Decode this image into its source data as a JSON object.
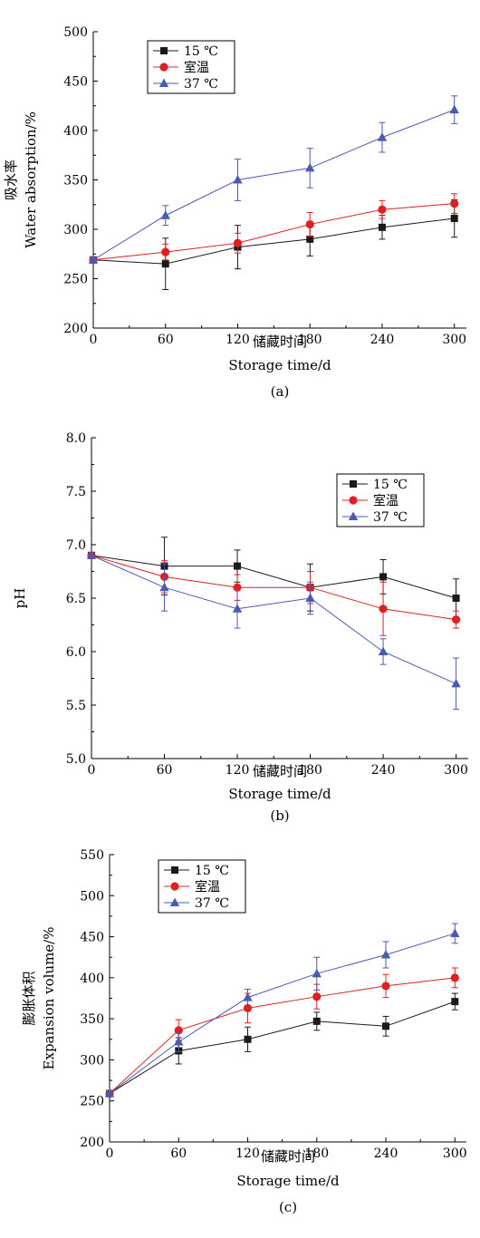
{
  "colors": {
    "s15": "#1a1a1a",
    "room": "#e02020",
    "s37": "#4a5ab0"
  },
  "chart_data": [
    {
      "type": "line",
      "caption": "(a)",
      "xlabel_cn": "储藏时间",
      "xlabel_en": "Storage  time/d",
      "ylabel_cn": "吸水率",
      "ylabel_en": "Water  absorption/%",
      "x": [
        0,
        60,
        120,
        180,
        240,
        300
      ],
      "xlim": [
        0,
        310
      ],
      "ylim": [
        200,
        500
      ],
      "yticks": [
        200,
        250,
        300,
        350,
        400,
        450,
        500
      ],
      "legend_position": "top-left",
      "series": [
        {
          "name": "15 ℃",
          "marker": "square",
          "values": [
            269,
            265,
            282,
            290,
            302,
            311
          ],
          "err": [
            3,
            26,
            22,
            17,
            12,
            19
          ]
        },
        {
          "name": "室温",
          "marker": "circle",
          "values": [
            269,
            277,
            286,
            305,
            320,
            326
          ],
          "err": [
            3,
            8,
            10,
            12,
            9,
            10
          ]
        },
        {
          "name": "37 ℃",
          "marker": "triangle",
          "values": [
            269,
            314,
            350,
            362,
            393,
            421
          ],
          "err": [
            3,
            10,
            21,
            20,
            15,
            14
          ]
        }
      ]
    },
    {
      "type": "line",
      "caption": "(b)",
      "xlabel_cn": "储藏时间",
      "xlabel_en": "Storage  time/d",
      "ylabel_cn": "",
      "ylabel_en": "pH",
      "x": [
        0,
        60,
        120,
        180,
        240,
        300
      ],
      "xlim": [
        0,
        310
      ],
      "ylim": [
        5.0,
        8.0
      ],
      "yticks": [
        "5.0",
        "5.5",
        "6.0",
        "6.5",
        "7.0",
        "7.5",
        "8.0"
      ],
      "legend_position": "top-right",
      "series": [
        {
          "name": "15 ℃",
          "marker": "square",
          "values": [
            6.9,
            6.8,
            6.8,
            6.6,
            6.7,
            6.5
          ],
          "err": [
            0.02,
            0.27,
            0.15,
            0.22,
            0.16,
            0.18
          ]
        },
        {
          "name": "室温",
          "marker": "circle",
          "values": [
            6.9,
            6.7,
            6.6,
            6.6,
            6.4,
            6.3
          ],
          "err": [
            0.02,
            0.15,
            0.12,
            0.15,
            0.25,
            0.08
          ]
        },
        {
          "name": "37 ℃",
          "marker": "triangle",
          "values": [
            6.9,
            6.6,
            6.4,
            6.5,
            6.0,
            5.7
          ],
          "err": [
            0.02,
            0.22,
            0.18,
            0.15,
            0.12,
            0.24
          ]
        }
      ]
    },
    {
      "type": "line",
      "caption": "(c)",
      "xlabel_cn": "储藏时间",
      "xlabel_en": "Storage  time/d",
      "ylabel_cn": "膨胀体积",
      "ylabel_en": "Expansion  volume/%",
      "x": [
        0,
        60,
        120,
        180,
        240,
        300
      ],
      "xlim": [
        0,
        310
      ],
      "ylim": [
        200,
        550
      ],
      "yticks": [
        200,
        250,
        300,
        350,
        400,
        450,
        500,
        550
      ],
      "legend_position": "top-left",
      "series": [
        {
          "name": "15 ℃",
          "marker": "square",
          "values": [
            259,
            311,
            325,
            347,
            341,
            371
          ],
          "err": [
            3,
            16,
            15,
            11,
            12,
            10
          ]
        },
        {
          "name": "室温",
          "marker": "circle",
          "values": [
            259,
            336,
            363,
            377,
            390,
            400
          ],
          "err": [
            3,
            13,
            18,
            15,
            14,
            12
          ]
        },
        {
          "name": "37 ℃",
          "marker": "triangle",
          "values": [
            259,
            322,
            376,
            405,
            428,
            454
          ],
          "err": [
            3,
            12,
            10,
            20,
            16,
            12
          ]
        }
      ]
    }
  ]
}
